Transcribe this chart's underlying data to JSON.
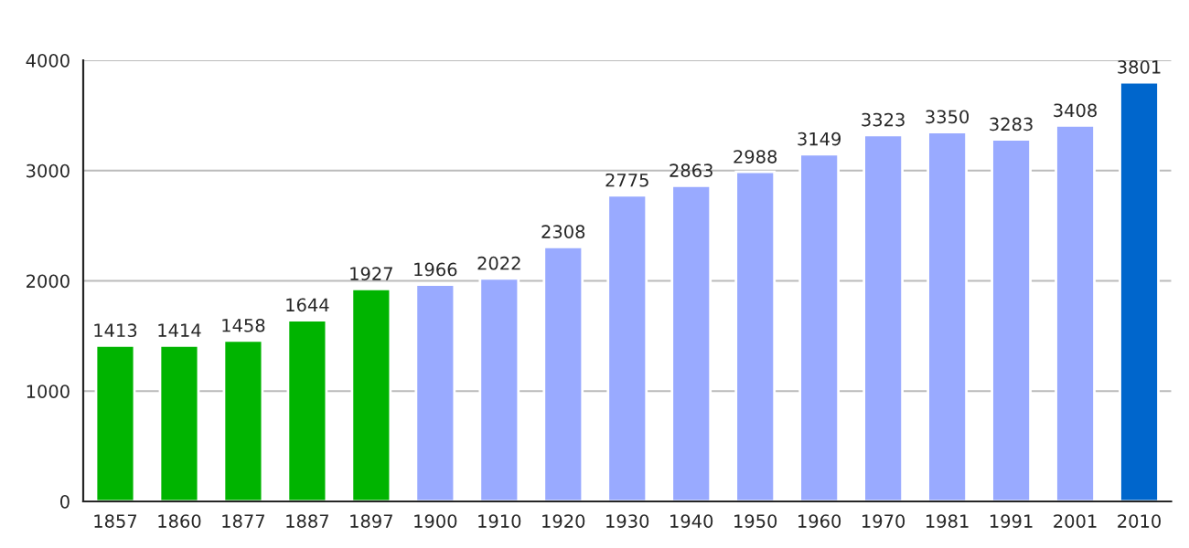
{
  "chart_data": {
    "type": "bar",
    "categories": [
      "1857",
      "1860",
      "1877",
      "1887",
      "1897",
      "1900",
      "1910",
      "1920",
      "1930",
      "1940",
      "1950",
      "1960",
      "1970",
      "1981",
      "1991",
      "2001",
      "2010"
    ],
    "values": [
      1413,
      1414,
      1458,
      1644,
      1927,
      1966,
      2022,
      2308,
      2775,
      2863,
      2988,
      3149,
      3323,
      3350,
      3283,
      3408,
      3801
    ],
    "colors": [
      "#00b400",
      "#00b400",
      "#00b400",
      "#00b400",
      "#00b400",
      "#99aaff",
      "#99aaff",
      "#99aaff",
      "#99aaff",
      "#99aaff",
      "#99aaff",
      "#99aaff",
      "#99aaff",
      "#99aaff",
      "#99aaff",
      "#99aaff",
      "#0066cc"
    ],
    "ylim": [
      0,
      4000
    ],
    "yticks": [
      0,
      1000,
      2000,
      3000,
      4000
    ],
    "grid": "y",
    "data_labels": true
  }
}
